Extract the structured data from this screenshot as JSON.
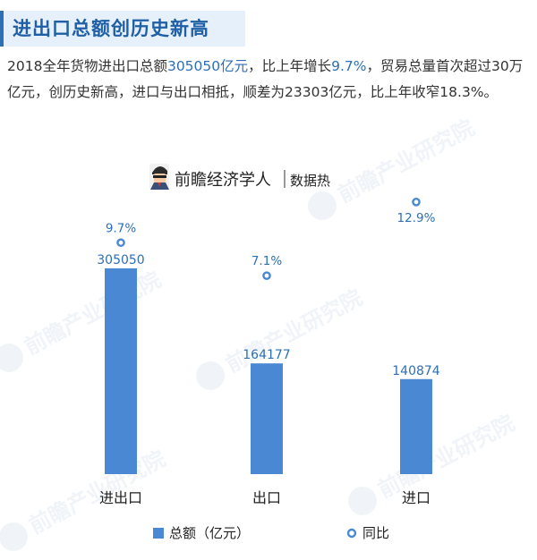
{
  "title": "进出口总额创历史新高",
  "summary": {
    "p1": "2018全年货物进出口总额",
    "v1": "305050亿元",
    "p2": "，比上年增长",
    "v2": "9.7%",
    "p3": "，贸易总量首次超过30万亿元，创历史新高，进口与出口相抵，顺差为23303亿元，比上年收窄18.3%。"
  },
  "brand": {
    "name": "前瞻经济学人",
    "tag": "数据热"
  },
  "watermark": "前瞻产业研究院",
  "colors": {
    "bar": "#4a88d4",
    "marker": "#4a88d4",
    "label": "#2e6fb5",
    "title": "#1f5fa6"
  },
  "chart_data": {
    "type": "bar",
    "categories": [
      "进出口",
      "出口",
      "进口"
    ],
    "series": [
      {
        "name": "总额（亿元）",
        "kind": "bar",
        "values": [
          305050,
          164177,
          140874
        ],
        "labels": [
          "305050",
          "164177",
          "140874"
        ]
      },
      {
        "name": "同比",
        "kind": "scatter",
        "values": [
          9.7,
          7.1,
          12.9
        ],
        "labels": [
          "9.7%",
          "7.1%",
          "12.9%"
        ]
      }
    ],
    "legend_position": "bottom-center",
    "grid": false
  }
}
